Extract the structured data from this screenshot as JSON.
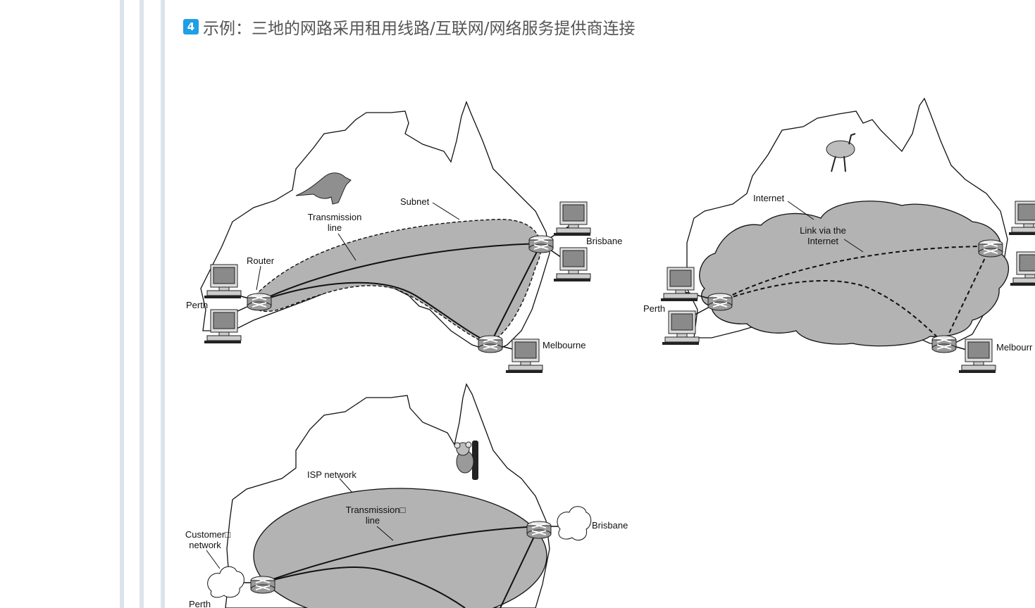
{
  "heading": {
    "badge": "4",
    "text": "示例：三地的网路采用租用线路/互联网/网络服务提供商连接"
  },
  "diagram_a": {
    "subnet_label": "Subnet",
    "transmission_line_1": "Transmission",
    "transmission_line_2": "line",
    "router_label": "Router",
    "perth": "Perth",
    "brisbane": "Brisbane",
    "melbourne": "Melbourne"
  },
  "diagram_b": {
    "internet_label": "Internet",
    "link_label_1": "Link via the",
    "link_label_2": "Internet",
    "perth": "Perth",
    "melbourne": "Melbourr"
  },
  "diagram_c": {
    "isp_label": "ISP network",
    "transmission_line_1": "Transmission□",
    "transmission_line_2": "line",
    "customer_1": "Customer□",
    "customer_2": "network",
    "brisbane": "Brisbane",
    "perth": "Perth"
  }
}
